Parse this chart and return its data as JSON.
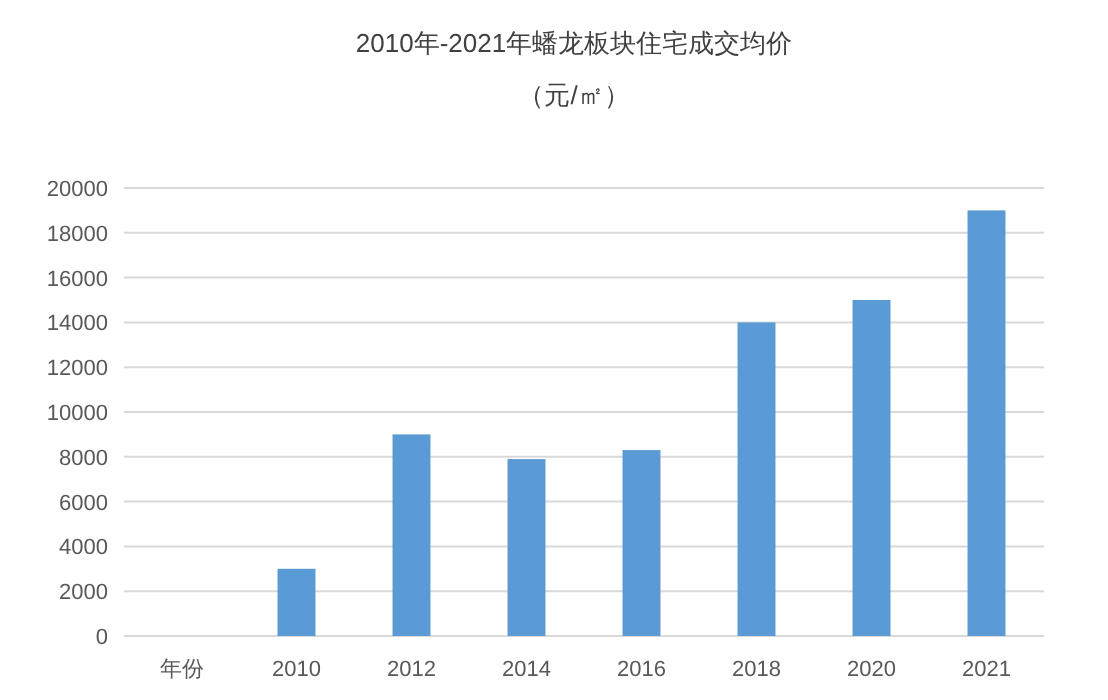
{
  "chart_data": {
    "type": "bar",
    "title": "2010年-2021年蟠龙板块住宅成交均价",
    "subtitle": "（元/㎡）",
    "categories": [
      "年份",
      "2010",
      "2012",
      "2014",
      "2016",
      "2018",
      "2020",
      "2021"
    ],
    "values": [
      null,
      3000,
      9000,
      7900,
      8300,
      14000,
      15000,
      19000
    ],
    "color": "#5b9bd5",
    "ylim": [
      0,
      20000
    ],
    "yticks": [
      0,
      2000,
      4000,
      6000,
      8000,
      10000,
      12000,
      14000,
      16000,
      18000,
      20000
    ],
    "grid": "y"
  }
}
